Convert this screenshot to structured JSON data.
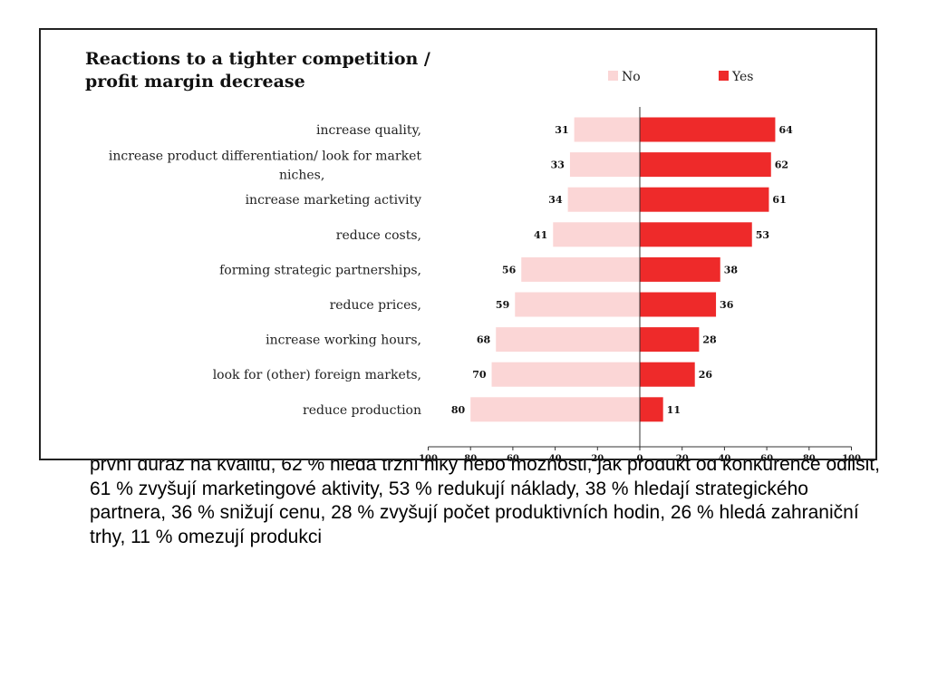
{
  "slide": {
    "body_text": "první důraz na kvalitu, 62 % hledá tržní niky nebo možnosti, jak produkt od konkurence odlišit, 61 % zvyšují marketingové aktivity, 53 % redukují náklady, 38 % hledají strategického partnera, 36 % snižují cenu, 28 % zvyšují počet produktivních hodin, 26 % hledá zahraniční trhy, 11 % omezují produkci"
  },
  "chart_data": {
    "type": "bar",
    "orientation": "horizontal-diverging",
    "title_lines": [
      "Reactions to a tighter competition /",
      "profit margin decrease"
    ],
    "categories": [
      [
        "increase quality,"
      ],
      [
        "increase product differentiation/ look for market",
        "niches,"
      ],
      [
        "increase marketing activity"
      ],
      [
        "reduce costs,"
      ],
      [
        "forming strategic partnerships,"
      ],
      [
        "reduce prices,"
      ],
      [
        "increase working hours,"
      ],
      [
        "look for (other) foreign markets,"
      ],
      [
        "reduce production"
      ]
    ],
    "series": [
      {
        "name": "No",
        "color": "#fbd6d6",
        "direction": "left",
        "values": [
          31,
          33,
          34,
          41,
          56,
          59,
          68,
          70,
          80
        ]
      },
      {
        "name": "Yes",
        "color": "#ee2a2a",
        "direction": "right",
        "values": [
          64,
          62,
          61,
          53,
          38,
          36,
          28,
          26,
          11
        ]
      }
    ],
    "xlim": [
      -100,
      100
    ],
    "ticks": [
      -100,
      -80,
      -60,
      -40,
      -20,
      0,
      20,
      40,
      60,
      80,
      100
    ],
    "tick_labels": [
      "100",
      "80",
      "60",
      "40",
      "20",
      "0",
      "20",
      "40",
      "60",
      "80",
      "100"
    ],
    "legend_position": "top-right",
    "grid": false
  }
}
